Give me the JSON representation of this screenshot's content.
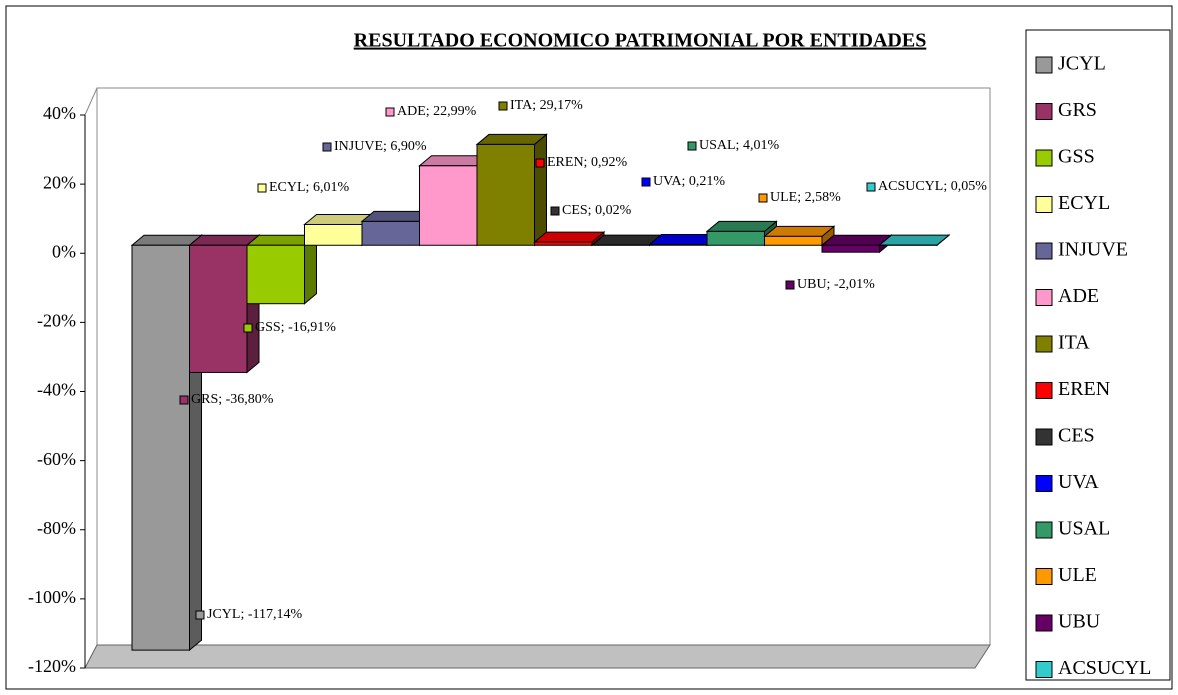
{
  "chart_data": {
    "type": "bar",
    "title": "RESULTADO ECONOMICO PATRIMONIAL POR ENTIDADES",
    "ylim": [
      -120,
      40
    ],
    "yticks": [
      {
        "value": -120,
        "label": "-120%"
      },
      {
        "value": -100,
        "label": "-100%"
      },
      {
        "value": -80,
        "label": "-80%"
      },
      {
        "value": -60,
        "label": "-60%"
      },
      {
        "value": -40,
        "label": "-40%"
      },
      {
        "value": -20,
        "label": "-20%"
      },
      {
        "value": 0,
        "label": "0%"
      },
      {
        "value": 20,
        "label": "20%"
      },
      {
        "value": 40,
        "label": "40%"
      }
    ],
    "legend": "right",
    "series": [
      {
        "name": "JCYL",
        "color": "#999999",
        "values": [
          -117.14
        ],
        "value_labels": [
          "JCYL; -117,14%"
        ]
      },
      {
        "name": "GRS",
        "color": "#993366",
        "values": [
          -36.8
        ],
        "value_labels": [
          "GRS; -36,80%"
        ]
      },
      {
        "name": "GSS",
        "color": "#99cc00",
        "values": [
          -16.91
        ],
        "value_labels": [
          "GSS; -16,91%"
        ]
      },
      {
        "name": "ECYL",
        "color": "#ffff99",
        "values": [
          6.01
        ],
        "value_labels": [
          "ECYL; 6,01%"
        ]
      },
      {
        "name": "INJUVE",
        "color": "#666699",
        "values": [
          6.9
        ],
        "value_labels": [
          "INJUVE; 6,90%"
        ]
      },
      {
        "name": "ADE",
        "color": "#ff99cc",
        "values": [
          22.99
        ],
        "value_labels": [
          "ADE; 22,99%"
        ]
      },
      {
        "name": "ITA",
        "color": "#808000",
        "values": [
          29.17
        ],
        "value_labels": [
          "ITA; 29,17%"
        ]
      },
      {
        "name": "EREN",
        "color": "#ff0000",
        "values": [
          0.92
        ],
        "value_labels": [
          "EREN; 0,92%"
        ]
      },
      {
        "name": "CES",
        "color": "#333333",
        "values": [
          0.02
        ],
        "value_labels": [
          "CES; 0,02%"
        ]
      },
      {
        "name": "UVA",
        "color": "#0000ff",
        "values": [
          0.21
        ],
        "value_labels": [
          "UVA; 0,21%"
        ]
      },
      {
        "name": "USAL",
        "color": "#339966",
        "values": [
          4.01
        ],
        "value_labels": [
          "USAL; 4,01%"
        ]
      },
      {
        "name": "ULE",
        "color": "#ff9900",
        "values": [
          2.58
        ],
        "value_labels": [
          "ULE; 2,58%"
        ]
      },
      {
        "name": "UBU",
        "color": "#660066",
        "values": [
          -2.01
        ],
        "value_labels": [
          "UBU; -2,01%"
        ]
      },
      {
        "name": "ACSUCYL",
        "color": "#33cccc",
        "values": [
          0.05
        ],
        "value_labels": [
          "ACSUCYL; 0,05%"
        ]
      }
    ]
  }
}
